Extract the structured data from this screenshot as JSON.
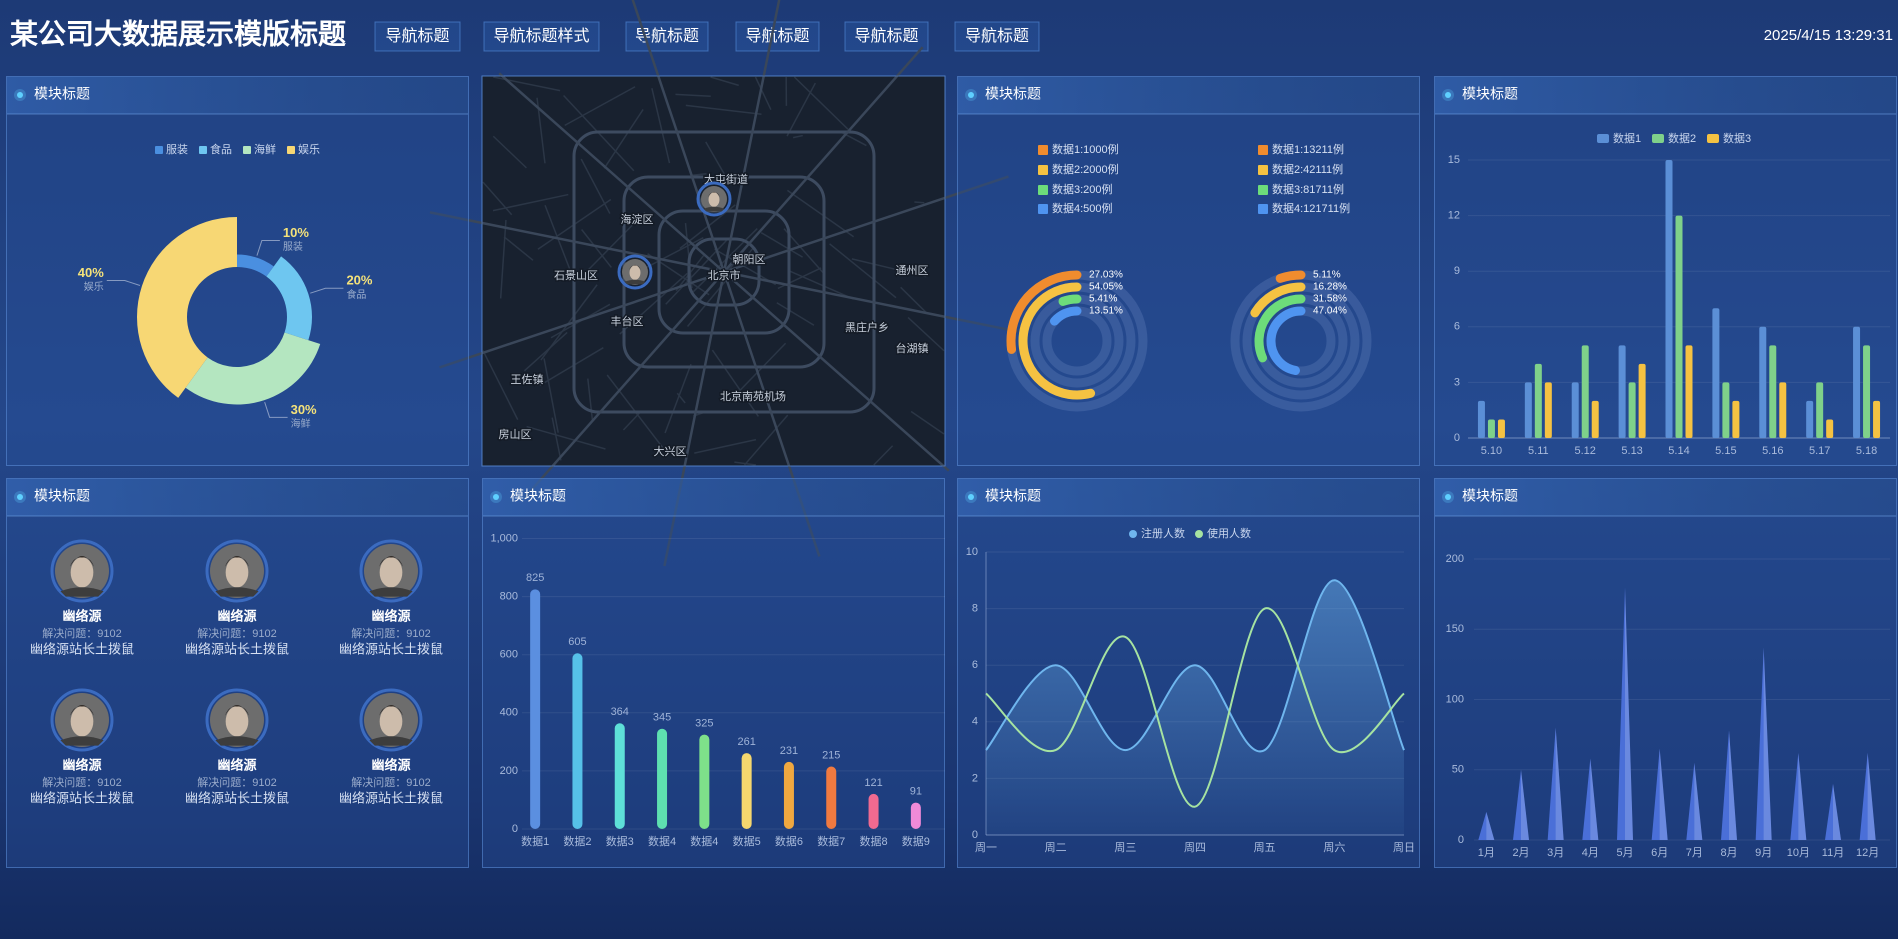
{
  "header": {
    "title": "某公司大数据展示模版标题",
    "nav": [
      "导航标题",
      "导航标题样式",
      "导航标题",
      "导航标题",
      "导航标题",
      "导航标题"
    ],
    "datetime": "2025/4/15 13:29:31"
  },
  "map": {
    "labels": [
      "大屯街道",
      "海淀区",
      "石景山区",
      "北京市",
      "朝阳区",
      "丰台区",
      "通州区",
      "黑庄户乡",
      "台湖镇",
      "北京南苑机场",
      "大兴区",
      "王佐镇",
      "房山区"
    ]
  },
  "people": {
    "title": "模块标题",
    "items": [
      {
        "name": "幽络源",
        "stat": "解决问题：9102",
        "desc": "幽络源站长土拨鼠"
      },
      {
        "name": "幽络源",
        "stat": "解决问题：9102",
        "desc": "幽络源站长土拨鼠"
      },
      {
        "name": "幽络源",
        "stat": "解决问题：9102",
        "desc": "幽络源站长土拨鼠"
      },
      {
        "name": "幽络源",
        "stat": "解决问题：9102",
        "desc": "幽络源站长土拨鼠"
      },
      {
        "name": "幽络源",
        "stat": "解决问题：9102",
        "desc": "幽络源站长土拨鼠"
      },
      {
        "name": "幽络源",
        "stat": "解决问题：9102",
        "desc": "幽络源站长土拨鼠"
      }
    ]
  },
  "chart_data": [
    {
      "type": "pie",
      "title": "模块标题",
      "rose": true,
      "categories": [
        "服装",
        "食品",
        "海鲜",
        "娱乐"
      ],
      "values": [
        10,
        20,
        30,
        40
      ],
      "value_labels": [
        "10%",
        "20%",
        "30%",
        "40%"
      ],
      "colors": [
        "#4a8fe0",
        "#6ec6f0",
        "#b4e6c0",
        "#f7d774"
      ]
    },
    {
      "type": "ring",
      "title": "模块标题",
      "colors": [
        "#f08c2e",
        "#f5c242",
        "#6ddc7a",
        "#4f94f0"
      ],
      "groups": [
        {
          "labels": [
            "数据1:1000例",
            "数据2:2000例",
            "数据3:200例",
            "数据4:500例"
          ],
          "values": [
            27.03,
            54.05,
            5.41,
            13.51
          ],
          "value_labels": [
            "27.03%",
            "54.05%",
            "5.41%",
            "13.51%"
          ]
        },
        {
          "labels": [
            "数据1:13211例",
            "数据2:42111例",
            "数据3:81711例",
            "数据4:121711例"
          ],
          "values": [
            5.11,
            16.28,
            31.58,
            47.04
          ],
          "value_labels": [
            "5.11%",
            "16.28%",
            "31.58%",
            "47.04%"
          ]
        }
      ]
    },
    {
      "type": "grouped_bar",
      "title": "模块标题",
      "categories": [
        "5.10",
        "5.11",
        "5.12",
        "5.13",
        "5.14",
        "5.15",
        "5.16",
        "5.17",
        "5.18"
      ],
      "series": [
        {
          "name": "数据1",
          "color": "#5b8fd6",
          "values": [
            2,
            3,
            3,
            5,
            15,
            7,
            6,
            2,
            6
          ]
        },
        {
          "name": "数据2",
          "color": "#7fd18a",
          "values": [
            1,
            4,
            5,
            3,
            12,
            3,
            5,
            3,
            5
          ]
        },
        {
          "name": "数据3",
          "color": "#f5c242",
          "values": [
            1,
            3,
            2,
            4,
            5,
            2,
            3,
            1,
            2
          ]
        }
      ],
      "ylim": [
        0,
        15
      ],
      "yticks": [
        0,
        3,
        6,
        9,
        12,
        15
      ],
      "grid": true
    },
    {
      "type": "bar",
      "title": "模块标题",
      "categories": [
        "数据1",
        "数据2",
        "数据3",
        "数据4",
        "数据4",
        "数据5",
        "数据6",
        "数据7",
        "数据8",
        "数据9"
      ],
      "values": [
        825,
        605,
        364,
        345,
        325,
        261,
        231,
        215,
        121,
        91
      ],
      "colors": [
        "#5b8fe0",
        "#56c1e8",
        "#5ee0d8",
        "#5ee0b0",
        "#7ee08a",
        "#f5d76e",
        "#f0a840",
        "#f07a40",
        "#f06a90",
        "#f08ad8"
      ],
      "ylim": [
        0,
        1000
      ],
      "yticks": [
        0,
        200,
        400,
        600,
        800,
        {
          "value": 1000,
          "label": "1,000"
        }
      ],
      "grid": true
    },
    {
      "type": "line",
      "title": "模块标题",
      "smooth": true,
      "categories": [
        "周一",
        "周二",
        "周三",
        "周四",
        "周五",
        "周六",
        "周日"
      ],
      "series": [
        {
          "name": "注册人数",
          "color": "#6fb6ee",
          "values": [
            3,
            6,
            3,
            6,
            3,
            9,
            3
          ],
          "area": true
        },
        {
          "name": "使用人数",
          "color": "#a6e3a1",
          "values": [
            5,
            3,
            7,
            1,
            8,
            3,
            5
          ]
        }
      ],
      "ylim": [
        0,
        10
      ],
      "yticks": [
        0,
        2,
        4,
        6,
        8,
        10
      ],
      "grid": true
    },
    {
      "type": "pictorial_bar",
      "title": "模块标题",
      "categories": [
        "1月",
        "2月",
        "3月",
        "4月",
        "5月",
        "6月",
        "7月",
        "8月",
        "9月",
        "10月",
        "11月",
        "12月"
      ],
      "values": [
        20,
        50,
        80,
        58,
        180,
        65,
        55,
        78,
        137,
        62,
        40,
        62
      ],
      "color": "#4a6fd8",
      "ylim": [
        0,
        200
      ],
      "yticks": [
        0,
        50,
        100,
        150,
        200
      ],
      "grid": true
    }
  ]
}
